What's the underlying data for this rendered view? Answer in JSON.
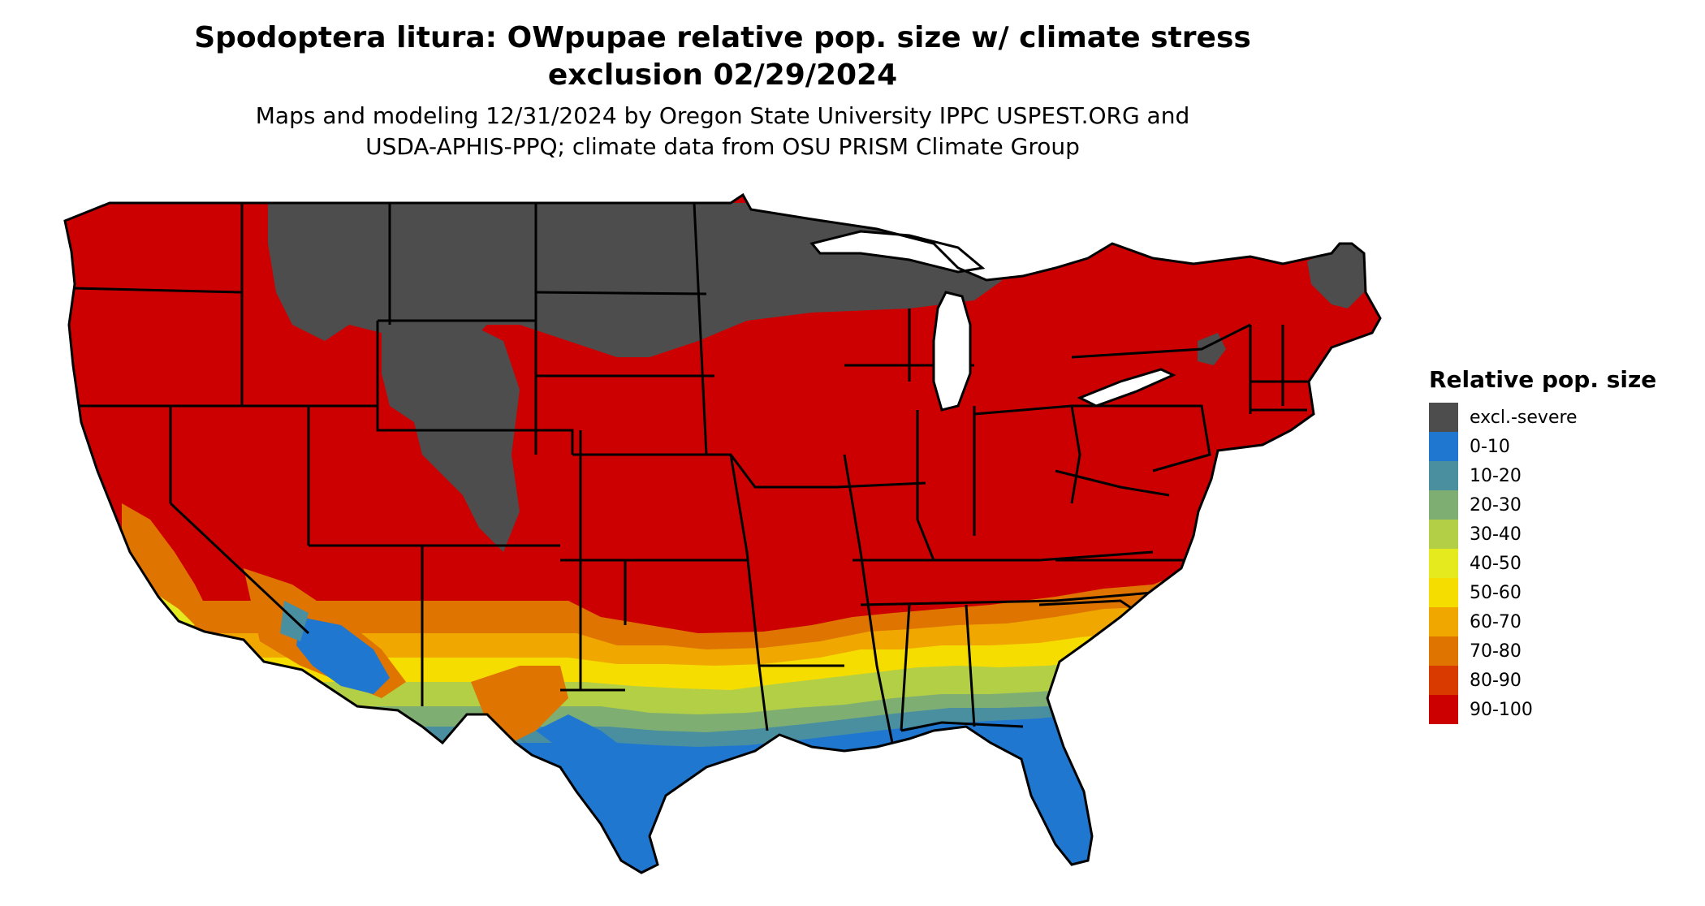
{
  "header": {
    "title_line1": "Spodoptera litura: OWpupae relative pop. size w/ climate stress",
    "title_line2": "exclusion 02/29/2024",
    "subtitle_line1": "Maps and modeling 12/31/2024 by Oregon State University IPPC USPEST.ORG and",
    "subtitle_line2": "USDA-APHIS-PPQ; climate data from OSU PRISM Climate Group"
  },
  "legend": {
    "title": "Relative pop. size",
    "items": [
      {
        "label": "excl.-severe",
        "color": "#4d4d4d"
      },
      {
        "label": "0-10",
        "color": "#1f77d0"
      },
      {
        "label": "10-20",
        "color": "#4a8fa0"
      },
      {
        "label": "20-30",
        "color": "#7fae73"
      },
      {
        "label": "30-40",
        "color": "#b3cf45"
      },
      {
        "label": "40-50",
        "color": "#e4ea1e"
      },
      {
        "label": "50-60",
        "color": "#f5dd00"
      },
      {
        "label": "60-70",
        "color": "#f0a800"
      },
      {
        "label": "70-80",
        "color": "#e07400"
      },
      {
        "label": "80-90",
        "color": "#d83a00"
      },
      {
        "label": "90-100",
        "color": "#cc0000"
      }
    ]
  }
}
